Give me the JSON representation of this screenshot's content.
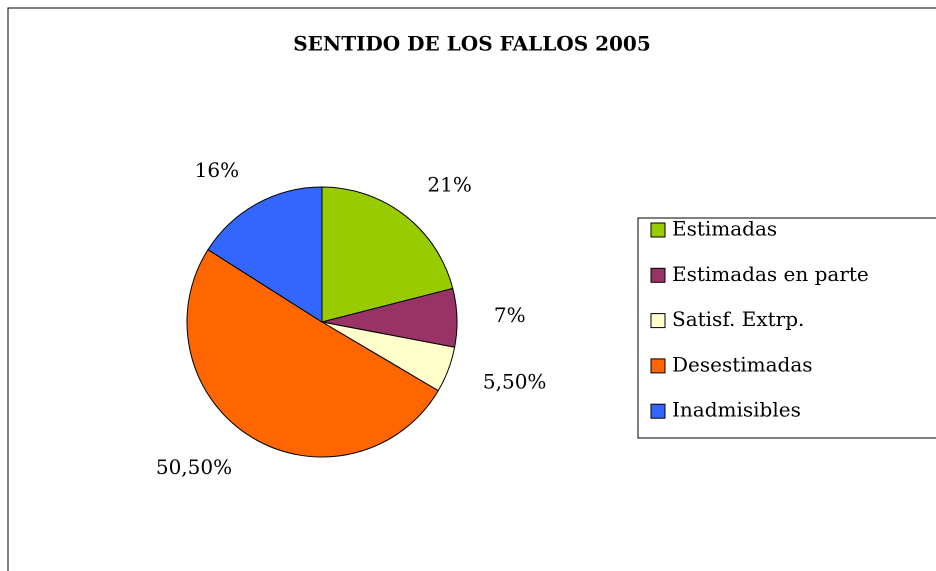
{
  "chart_data": {
    "type": "pie",
    "title": "SENTIDO DE LOS FALLOS 2005",
    "categories": [
      "Estimadas",
      "Estimadas en parte",
      "Satisf. Extrp.",
      "Desestimadas",
      "Inadmisibles"
    ],
    "values": [
      21,
      7,
      5.5,
      50.5,
      16
    ],
    "value_labels": [
      "21%",
      "7%",
      "5,50%",
      "50,50%",
      "16%"
    ],
    "colors": [
      "#99cc00",
      "#993366",
      "#ffffcc",
      "#ff6600",
      "#3366ff"
    ],
    "legend": "right"
  }
}
